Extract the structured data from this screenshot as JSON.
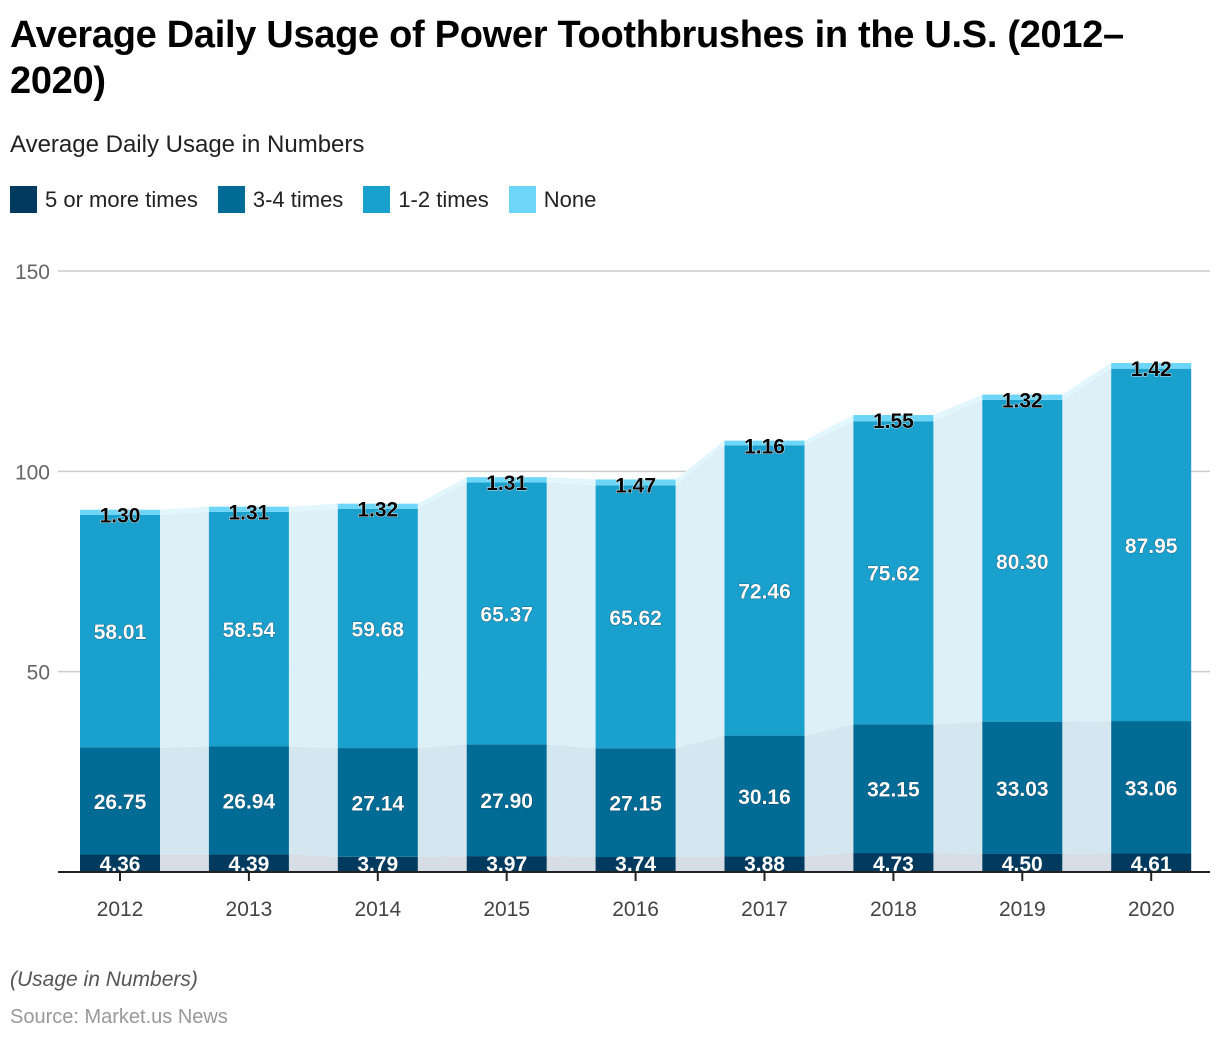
{
  "chart_data": {
    "type": "bar",
    "stacked": true,
    "title": "Average Daily Usage of Power Toothbrushes in the U.S. (2012–2020)",
    "subtitle": "Average Daily Usage in Numbers",
    "xlabel": "",
    "ylabel": "",
    "ylim": [
      0,
      150
    ],
    "yticks": [
      50,
      100,
      150
    ],
    "grid": true,
    "legend_position": "top-left",
    "categories": [
      "2012",
      "2013",
      "2014",
      "2015",
      "2016",
      "2017",
      "2018",
      "2019",
      "2020"
    ],
    "series": [
      {
        "name": "5 or more times",
        "color": "#003a5f",
        "label_color": "#ffffff",
        "values": [
          4.36,
          4.39,
          3.79,
          3.97,
          3.74,
          3.88,
          4.73,
          4.5,
          4.61
        ],
        "labels": [
          "4.36",
          "4.39",
          "3.79",
          "3.97",
          "3.74",
          "3.88",
          "4.73",
          "4.50",
          "4.61"
        ]
      },
      {
        "name": "3-4 times",
        "color": "#006c96",
        "label_color": "#ffffff",
        "values": [
          26.75,
          26.94,
          27.14,
          27.9,
          27.15,
          30.16,
          32.15,
          33.03,
          33.06
        ],
        "labels": [
          "26.75",
          "26.94",
          "27.14",
          "27.90",
          "27.15",
          "30.16",
          "32.15",
          "33.03",
          "33.06"
        ]
      },
      {
        "name": "1-2 times",
        "color": "#1aa0cc",
        "label_color": "#ffffff",
        "values": [
          58.01,
          58.54,
          59.68,
          65.37,
          65.62,
          72.46,
          75.62,
          80.3,
          87.95
        ],
        "labels": [
          "58.01",
          "58.54",
          "59.68",
          "65.37",
          "65.62",
          "72.46",
          "75.62",
          "80.30",
          "87.95"
        ]
      },
      {
        "name": "None",
        "color": "#6dd5f7",
        "label_color": "#000000",
        "values": [
          1.3,
          1.31,
          1.32,
          1.31,
          1.47,
          1.16,
          1.55,
          1.32,
          1.42
        ],
        "labels": [
          "1.30",
          "1.31",
          "1.32",
          "1.31",
          "1.47",
          "1.16",
          "1.55",
          "1.32",
          "1.42"
        ]
      }
    ],
    "note": "(Usage in Numbers)",
    "source": "Source: Market.us News"
  }
}
